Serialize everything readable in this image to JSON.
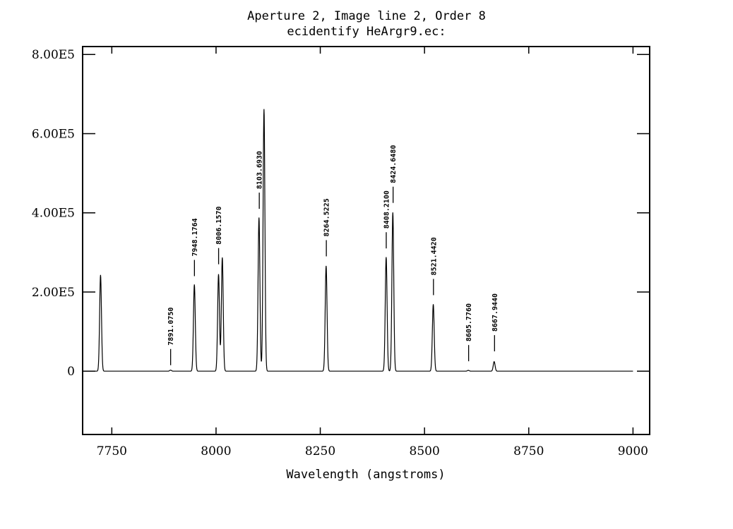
{
  "chart_data": {
    "type": "line",
    "title": "Aperture 2, Image line 2, Order 8",
    "subtitle": "ecidentify HeArgr9.ec:",
    "xlabel": "Wavelength (angstroms)",
    "ylabel": "",
    "xlim": [
      7680,
      9040
    ],
    "ylim": [
      -160000,
      820000
    ],
    "x_ticks": [
      7750,
      8000,
      8250,
      8500,
      8750,
      9000
    ],
    "x_tick_labels": [
      "7750",
      "8000",
      "8250",
      "8500",
      "8750",
      "9000"
    ],
    "y_ticks": [
      0,
      200000,
      400000,
      600000,
      800000
    ],
    "y_tick_labels": [
      "0",
      "2.00E5",
      "4.00E5",
      "6.00E5",
      "8.00E5"
    ],
    "x_range": [
      7705,
      9000
    ],
    "sigma": 2.2,
    "peaks": [
      {
        "x": 7723,
        "y": 243000
      },
      {
        "x": 7891,
        "y": 2500
      },
      {
        "x": 7948,
        "y": 219000
      },
      {
        "x": 8006,
        "y": 245000
      },
      {
        "x": 8015,
        "y": 287000
      },
      {
        "x": 8103,
        "y": 388000
      },
      {
        "x": 8115,
        "y": 662000
      },
      {
        "x": 8264,
        "y": 266000
      },
      {
        "x": 8408,
        "y": 288000
      },
      {
        "x": 8424,
        "y": 401000
      },
      {
        "x": 8521,
        "y": 169000
      },
      {
        "x": 8605,
        "y": 2000
      },
      {
        "x": 8667,
        "y": 24000
      }
    ],
    "identified_lines": [
      {
        "x": 7891.075,
        "label": "7891.0750",
        "y": 15000
      },
      {
        "x": 7948.1764,
        "label": "7948.1764",
        "y": 240000
      },
      {
        "x": 8006.157,
        "label": "8006.1570",
        "y": 270000
      },
      {
        "x": 8103.693,
        "label": "8103.6930",
        "y": 410000
      },
      {
        "x": 8264.5225,
        "label": "8264.5225",
        "y": 290000
      },
      {
        "x": 8408.21,
        "label": "8408.2100",
        "y": 310000
      },
      {
        "x": 8424.648,
        "label": "8424.6480",
        "y": 425000
      },
      {
        "x": 8521.442,
        "label": "8521.4420",
        "y": 192000
      },
      {
        "x": 8605.776,
        "label": "8605.7760",
        "y": 25000
      },
      {
        "x": 8667.944,
        "label": "8667.9440",
        "y": 50000
      }
    ]
  }
}
